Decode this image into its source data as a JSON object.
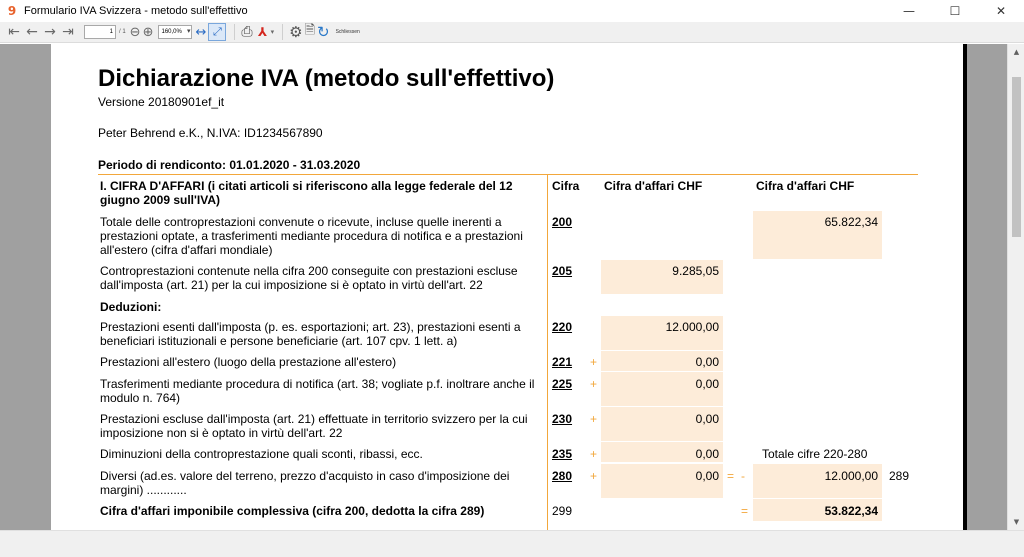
{
  "window": {
    "title": "Formulario IVA Svizzera - metodo sull'effettivo",
    "app_icon": "9",
    "minimize": "—",
    "maximize": "☐",
    "close": "✕"
  },
  "toolbar": {
    "page_value": "1",
    "page_total": "/ 1",
    "zoom_value": "160,0%",
    "close_label": "Schliessen"
  },
  "document": {
    "title": "Dichiarazione IVA (metodo sull'effettivo)",
    "version": "Versione 20180901ef_it",
    "company": "Peter Behrend e.K., N.IVA: ID1234567890",
    "period": "Periodo di rendiconto: 01.01.2020 - 31.03.2020",
    "section": {
      "title": "I. CIFRA D'AFFARI (i citati articoli si riferiscono alla legge federale del 12 giugno 2009 sull'IVA)",
      "col_code": "Cifra",
      "col_a": "Cifra d'affari CHF",
      "col_b": "Cifra d'affari CHF"
    },
    "rows": {
      "r200": {
        "desc": "Totale delle controprestazioni convenute o ricevute, incluse quelle inerenti a prestazioni optate, a trasferimenti mediante procedura di notifica e a prestazioni all'estero (cifra d'affari mondiale)",
        "code": "200",
        "value_b": "65.822,34"
      },
      "r205": {
        "desc": "Controprestazioni contenute nella cifra 200 conseguite con prestazioni escluse dall'imposta (art. 21) per la cui imposizione si è optato in virtù dell'art. 22",
        "code": "205",
        "value_a": "9.285,05"
      },
      "deductions": "Deduzioni:",
      "r220": {
        "desc": "Prestazioni esenti dall'imposta (p. es. esportazioni; art. 23), prestazioni esenti a beneficiari istituzionali e persone beneficiarie (art. 107 cpv. 1 lett. a)",
        "code": "220",
        "value_a": "12.000,00"
      },
      "r221": {
        "desc": "Prestazioni all'estero (luogo della prestazione all'estero)",
        "code": "221",
        "op": "+",
        "value_a": "0,00"
      },
      "r225": {
        "desc": "Trasferimenti mediante procedura di notifica (art. 38; vogliate p.f. inoltrare anche il modulo n. 764)",
        "code": "225",
        "op": "+",
        "value_a": "0,00"
      },
      "r230": {
        "desc": "Prestazioni escluse dall'imposta (art. 21) effettuate in territorio svizzero per la cui imposizione non si è optato in virtù dell'art. 22",
        "code": "230",
        "op": "+",
        "value_a": "0,00"
      },
      "r235": {
        "desc": "Diminuzioni della controprestazione quali sconti, ribassi, ecc.",
        "code": "235",
        "op": "+",
        "value_a": "0,00",
        "label_b": "Totale cifre 220-280"
      },
      "r280": {
        "desc": "Diversi (ad.es. valore del terreno, prezzo d'acquisto in caso d'imposizione dei margini) ............",
        "code": "280",
        "op": "+",
        "value_a": "0,00",
        "op_eq": "=",
        "op_minus": "-",
        "value_b": "12.000,00",
        "ref": "289"
      },
      "r299": {
        "desc": "Cifra d'affari imponibile complessiva (cifra 200, dedotta la cifra 289)",
        "code": "299",
        "op_eq": "=",
        "value_b": "53.822,34"
      }
    }
  },
  "colors": {
    "accent_orange": "#f2a73b",
    "cell_fill": "#fdecd9",
    "viewer_bg": "#a0a0a0"
  }
}
